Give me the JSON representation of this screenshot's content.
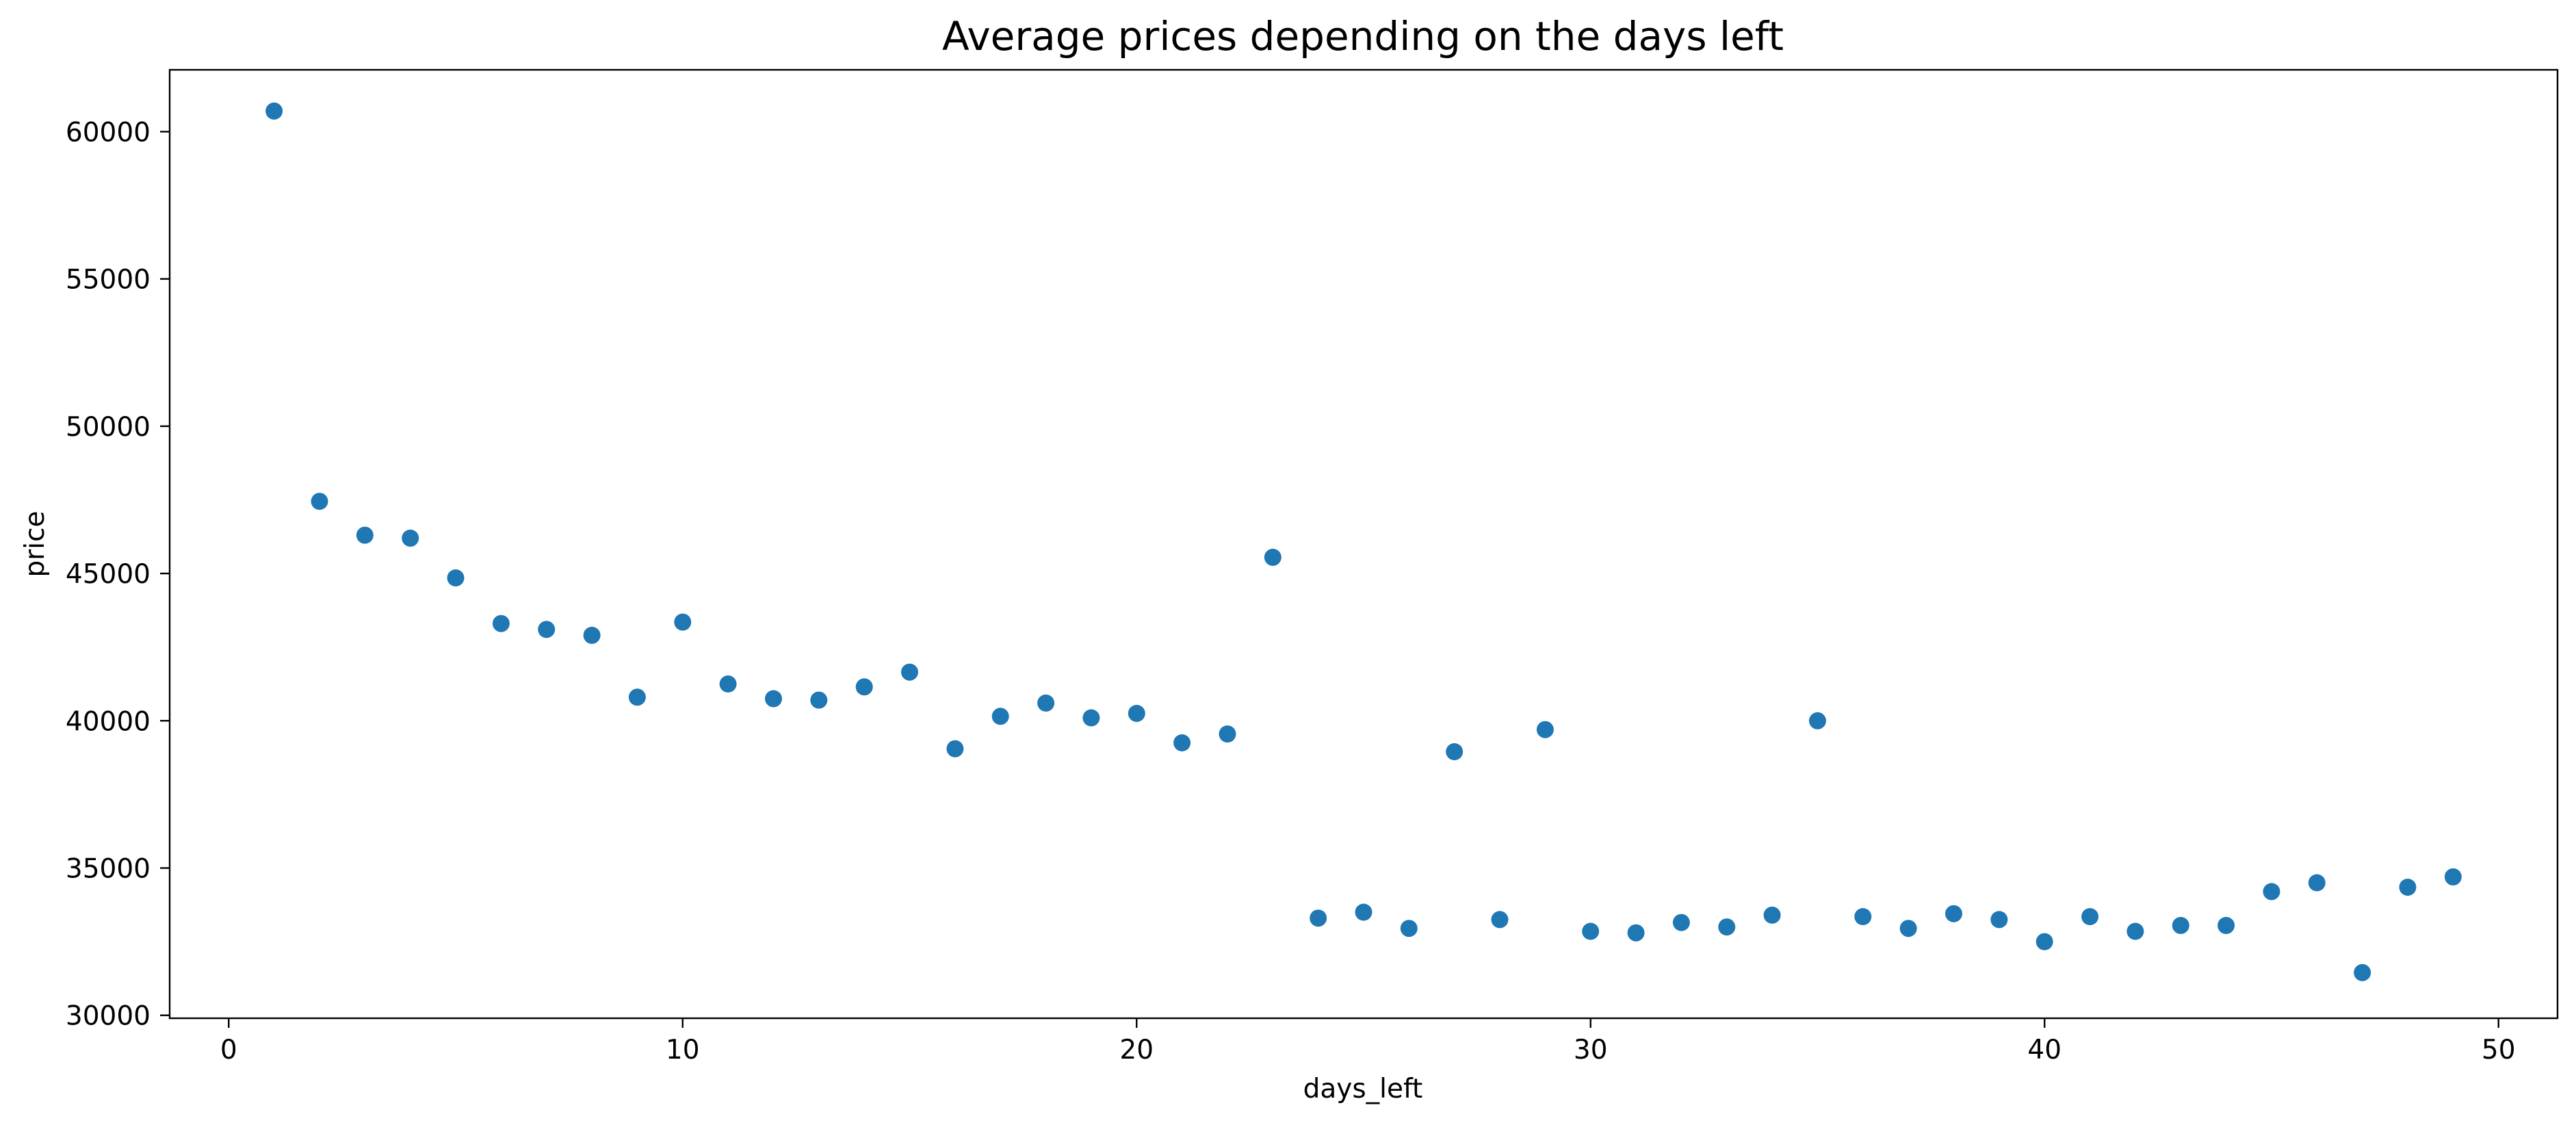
{
  "chart_data": {
    "type": "scatter",
    "title": "Average prices depending on the days left",
    "xlabel": "days_left",
    "ylabel": "price",
    "xlim": [
      -1.3,
      51.3
    ],
    "ylim": [
      29900,
      62100
    ],
    "xticks": [
      0,
      10,
      20,
      30,
      40,
      50
    ],
    "yticks": [
      30000,
      35000,
      40000,
      45000,
      50000,
      55000,
      60000
    ],
    "grid": false,
    "legend": "none",
    "marker_color": "#1f77b4",
    "series": [
      {
        "x": [
          1,
          2,
          3,
          4,
          5,
          6,
          7,
          8,
          9,
          10,
          11,
          12,
          13,
          14,
          15,
          16,
          17,
          18,
          19,
          20,
          21,
          22,
          23,
          24,
          25,
          26,
          27,
          28,
          29,
          30,
          31,
          32,
          33,
          34,
          35,
          36,
          37,
          38,
          39,
          40,
          41,
          42,
          43,
          44,
          45,
          46,
          47,
          48,
          49
        ],
        "y": [
          60700,
          47450,
          46300,
          46200,
          44850,
          43300,
          43100,
          42900,
          40800,
          43350,
          41250,
          40750,
          40700,
          41150,
          41650,
          39050,
          40150,
          40600,
          40100,
          40250,
          39250,
          39550,
          45550,
          33300,
          33500,
          32950,
          38950,
          33250,
          39700,
          32850,
          32800,
          33150,
          33000,
          33400,
          40000,
          33350,
          32950,
          33450,
          33250,
          32500,
          33350,
          32850,
          33050,
          33050,
          34200,
          34500,
          31450,
          34350,
          34700
        ]
      }
    ]
  }
}
